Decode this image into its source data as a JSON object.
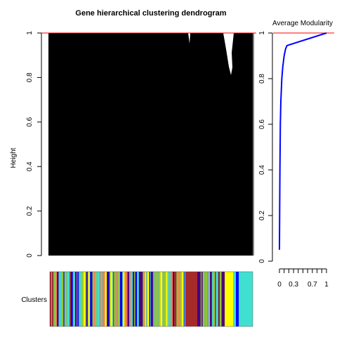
{
  "chart_data": [
    {
      "type": "dendrogram",
      "title": "Gene hierarchical clustering dendrogram",
      "ylabel": "Height",
      "xlabel": "",
      "ylim": [
        0,
        1
      ],
      "y_ticks": [
        "0",
        "0.2",
        "0.4",
        "0.6",
        "0.8",
        "1"
      ],
      "cut_height": 1,
      "cut_line_color": "#ff0000",
      "fill_color": "#000000",
      "color_bar": {
        "label": "Clusters",
        "palette": [
          "#4b0082",
          "#40e0d0",
          "#0000ff",
          "#9acd32",
          "#a52a2a",
          "#ffff00",
          "#ff7f50",
          "#66cdaa"
        ]
      }
    },
    {
      "type": "line",
      "title": "Average Modularity",
      "xlabel": "",
      "ylabel": "",
      "xlim": [
        0,
        1
      ],
      "ylim": [
        0,
        1
      ],
      "x_ticks": [
        "0",
        "0.3",
        "0.7",
        "1"
      ],
      "y_ticks": [
        "0",
        "0.2",
        "0.4",
        "0.6",
        "0.8",
        "1"
      ],
      "line_color": "#0000ff",
      "ref_line": {
        "y": 1,
        "color": "#ff0000"
      },
      "x": [
        0.0,
        0.005,
        0.01,
        0.02,
        0.03,
        0.05,
        0.07,
        0.1,
        0.13,
        0.16,
        1.0
      ],
      "y": [
        0.05,
        0.2,
        0.4,
        0.6,
        0.7,
        0.8,
        0.85,
        0.9,
        0.93,
        0.945,
        1.0
      ]
    }
  ]
}
